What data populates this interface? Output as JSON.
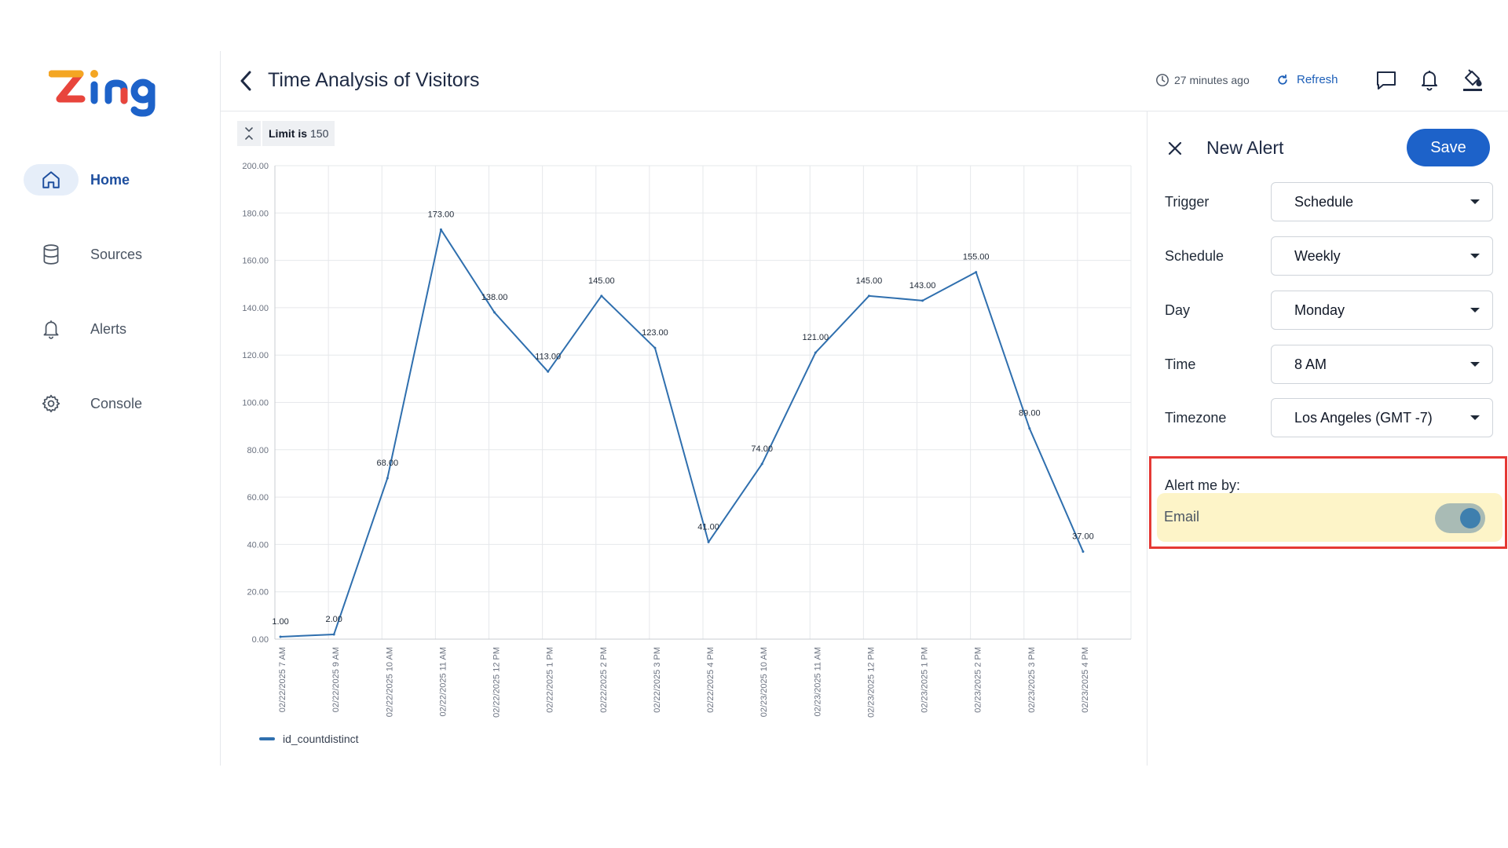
{
  "header": {
    "title": "Time Analysis of Visitors",
    "updated": "27 minutes ago",
    "refresh_label": "Refresh"
  },
  "sidebar": {
    "items": [
      {
        "label": "Home",
        "icon": "home-icon",
        "active": true
      },
      {
        "label": "Sources",
        "icon": "database-icon",
        "active": false
      },
      {
        "label": "Alerts",
        "icon": "bell-icon",
        "active": false
      },
      {
        "label": "Console",
        "icon": "gear-icon",
        "active": false
      }
    ]
  },
  "limit": {
    "label": "Limit is",
    "value": "150"
  },
  "panel": {
    "title": "New Alert",
    "save_label": "Save",
    "fields": [
      {
        "label": "Trigger",
        "value": "Schedule"
      },
      {
        "label": "Schedule",
        "value": "Weekly"
      },
      {
        "label": "Day",
        "value": "Monday"
      },
      {
        "label": "Time",
        "value": "8 AM"
      },
      {
        "label": "Timezone",
        "value": "Los Angeles (GMT -7)"
      }
    ],
    "alert_title": "Alert me by:",
    "email_label": "Email",
    "email_enabled": true
  },
  "colors": {
    "accent": "#1d62c9",
    "line": "#2f6fae",
    "highlight_border": "#e53935",
    "email_bg": "#fdf4c8"
  },
  "chart_data": {
    "type": "line",
    "title": "",
    "xlabel": "",
    "ylabel": "",
    "ylim": [
      0,
      200
    ],
    "yticks": [
      "0.00",
      "20.00",
      "40.00",
      "60.00",
      "80.00",
      "100.00",
      "120.00",
      "140.00",
      "160.00",
      "180.00",
      "200.00"
    ],
    "categories": [
      "02/22/2025 7 AM",
      "02/22/2025 9 AM",
      "02/22/2025 10 AM",
      "02/22/2025 11 AM",
      "02/22/2025 12 PM",
      "02/22/2025 1 PM",
      "02/22/2025 2 PM",
      "02/22/2025 3 PM",
      "02/22/2025 4 PM",
      "02/23/2025 10 AM",
      "02/23/2025 11 AM",
      "02/23/2025 12 PM",
      "02/23/2025 1 PM",
      "02/23/2025 2 PM",
      "02/23/2025 3 PM",
      "02/23/2025 4 PM"
    ],
    "series": [
      {
        "name": "id_countdistinct",
        "values": [
          1,
          2,
          68,
          173,
          138,
          113,
          145,
          123,
          41,
          74,
          121,
          145,
          143,
          155,
          89,
          37
        ],
        "labels": [
          "1.00",
          "2.00",
          "68.00",
          "173.00",
          "138.00",
          "113.00",
          "145.00",
          "123.00",
          "41.00",
          "74.00",
          "121.00",
          "145.00",
          "143.00",
          "155.00",
          "89.00",
          "37.00"
        ]
      }
    ],
    "grid": true,
    "legend": "bottom-left"
  }
}
